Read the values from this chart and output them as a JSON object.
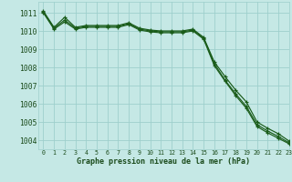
{
  "title": "Graphe pression niveau de la mer (hPa)",
  "background_color": "#c5e8e5",
  "grid_color": "#9ecfcc",
  "line_color": "#1a5c1a",
  "text_color": "#1a4a1a",
  "xlim": [
    -0.5,
    23
  ],
  "ylim": [
    1003.5,
    1011.6
  ],
  "yticks": [
    1004,
    1005,
    1006,
    1007,
    1008,
    1009,
    1010,
    1011
  ],
  "xtick_labels": [
    "0",
    "1",
    "2",
    "3",
    "4",
    "5",
    "6",
    "7",
    "8",
    "9",
    "10",
    "11",
    "12",
    "13",
    "14",
    "15",
    "16",
    "17",
    "18",
    "19",
    "20",
    "21",
    "22",
    "23"
  ],
  "series": [
    [
      1011.1,
      1010.2,
      1010.75,
      1010.2,
      1010.3,
      1010.3,
      1010.3,
      1010.3,
      1010.45,
      1010.15,
      1010.05,
      1010.0,
      1010.0,
      1010.0,
      1010.1,
      1009.65,
      1008.3,
      1007.5,
      1006.75,
      1006.1,
      1005.0,
      1004.65,
      1004.35,
      1003.95
    ],
    [
      1011.05,
      1010.15,
      1010.6,
      1010.15,
      1010.25,
      1010.25,
      1010.25,
      1010.25,
      1010.4,
      1010.1,
      1010.0,
      1009.95,
      1009.95,
      1009.95,
      1010.05,
      1009.6,
      1008.2,
      1007.3,
      1006.55,
      1005.85,
      1004.85,
      1004.5,
      1004.2,
      1003.85
    ],
    [
      1011.0,
      1010.1,
      1010.5,
      1010.1,
      1010.2,
      1010.2,
      1010.2,
      1010.2,
      1010.35,
      1010.05,
      1009.95,
      1009.9,
      1009.9,
      1009.9,
      1010.0,
      1009.55,
      1008.1,
      1007.25,
      1006.45,
      1005.75,
      1004.75,
      1004.4,
      1004.1,
      1003.8
    ]
  ]
}
